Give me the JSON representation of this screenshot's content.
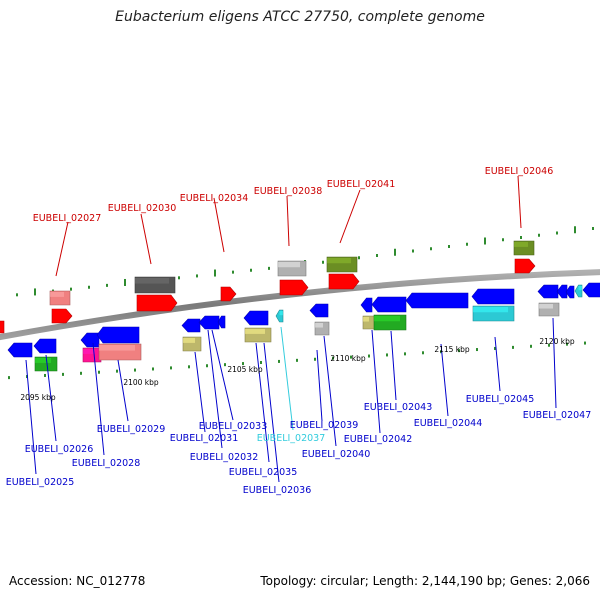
{
  "title": "Eubacterium eligens ATCC 27750, complete genome",
  "footer": {
    "accession": "Accession: NC_012778",
    "summary": "Topology: circular; Length: 2,144,190 bp; Genes: 2,066"
  },
  "ticks": [
    "2095 kbp",
    "2100 kbp",
    "2105 kbp",
    "2110 kbp",
    "2115 kbp",
    "2120 kbp"
  ],
  "labels_top": [
    "EUBELI_02027",
    "EUBELI_02030",
    "EUBELI_02034",
    "EUBELI_02038",
    "EUBELI_02041",
    "EUBELI_02046"
  ],
  "labels_bottom": [
    "EUBELI_02025",
    "EUBELI_02026",
    "EUBELI_02028",
    "EUBELI_02029",
    "EUBELI_02031",
    "EUBELI_02032",
    "EUBELI_02033",
    "EUBELI_02035",
    "EUBELI_02036",
    "EUBELI_02037",
    "EUBELI_02039",
    "EUBELI_02040",
    "EUBELI_02042",
    "EUBELI_02043",
    "EUBELI_02044",
    "EUBELI_02045",
    "EUBELI_02047"
  ],
  "colors": {
    "top_label": "#cc0000",
    "bottom_label": "#0000cc",
    "highlight_label": "#33ccdd",
    "backbone": "#808080",
    "ticks": "#2e8b2e",
    "gene_red": "#ff0000",
    "gene_blue": "#0000ff",
    "gene_cyan": "#2cc9d4",
    "gene_green": "#22aa22",
    "gene_olive": "#6b8e23",
    "gene_khaki": "#bdb76b",
    "gene_pink": "#f08080",
    "gene_magenta": "#ff1493",
    "gene_grey": "#b0b0b0",
    "gene_dark": "#555555"
  }
}
